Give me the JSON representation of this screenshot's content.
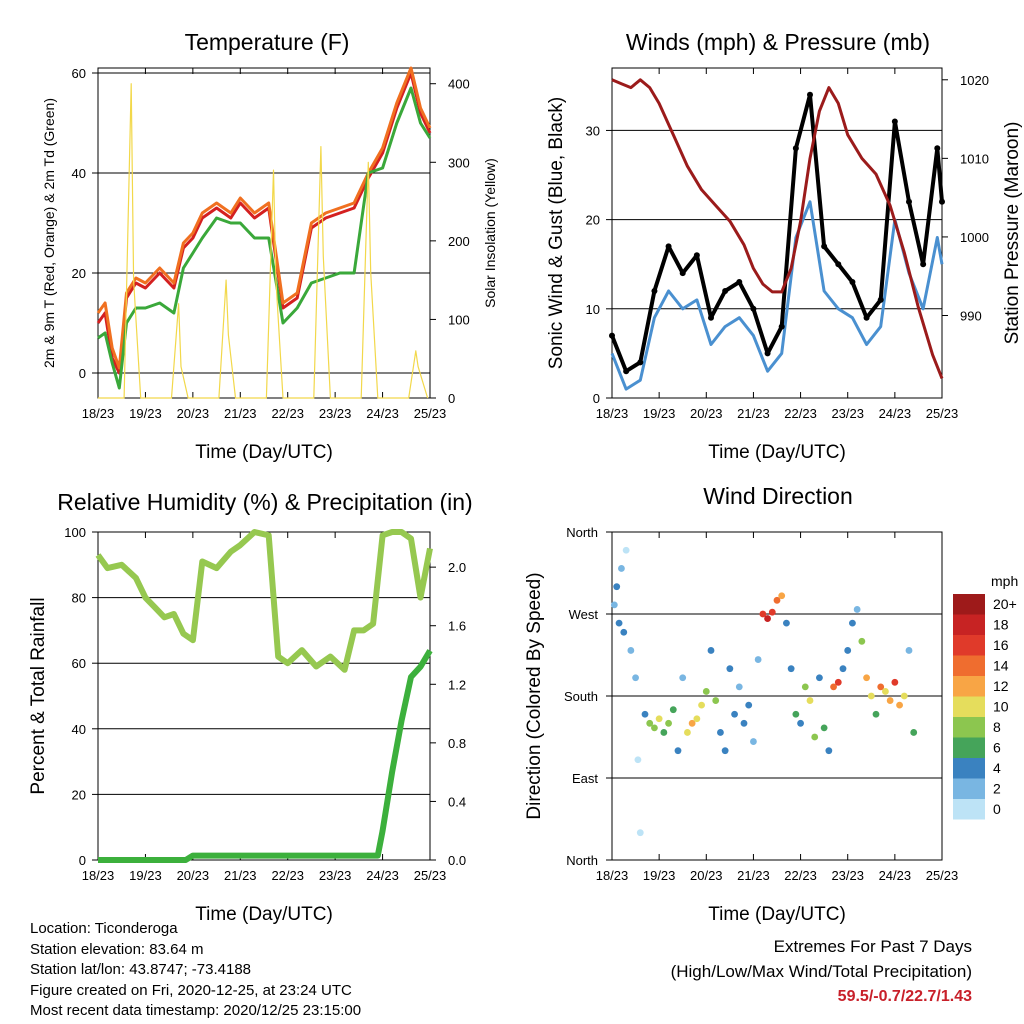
{
  "chart_data": [
    {
      "type": "line",
      "title": "Temperature (F)",
      "xlabel": "Time (Day/UTC)",
      "ylabel": "2m & 9m T (Red, Orange) & 2m Td (Green)",
      "ylabel_right": "Solar Insolation (Yellow)",
      "x_ticks": [
        "18/23",
        "19/23",
        "20/23",
        "21/23",
        "22/23",
        "23/23",
        "24/23",
        "25/23"
      ],
      "ylim": [
        -5,
        61
      ],
      "yticks": [
        0,
        20,
        40,
        60
      ],
      "ylim_right": [
        0,
        420
      ],
      "yticks_right": [
        0,
        100,
        200,
        300,
        400
      ],
      "grid_y": [
        0,
        20,
        40,
        60
      ],
      "series": [
        {
          "name": "2m T",
          "color": "#d42020",
          "x": [
            0,
            0.15,
            0.3,
            0.45,
            0.6,
            0.8,
            1,
            1.3,
            1.6,
            1.8,
            2,
            2.2,
            2.5,
            2.8,
            3,
            3.3,
            3.6,
            3.9,
            4.2,
            4.5,
            4.8,
            5.1,
            5.4,
            5.7,
            6,
            6.3,
            6.6,
            6.8,
            7
          ],
          "values": [
            10,
            12,
            3,
            0,
            15,
            18,
            17,
            20,
            17,
            25,
            27,
            31,
            33,
            31,
            34,
            31,
            33,
            13,
            15,
            29,
            31,
            32,
            33,
            39,
            44,
            53,
            60,
            52,
            48
          ]
        },
        {
          "name": "9m T",
          "color": "#f07020",
          "x": [
            0,
            0.15,
            0.3,
            0.45,
            0.6,
            0.8,
            1,
            1.3,
            1.6,
            1.8,
            2,
            2.2,
            2.5,
            2.8,
            3,
            3.3,
            3.6,
            3.9,
            4.2,
            4.5,
            4.8,
            5.1,
            5.4,
            5.7,
            6,
            6.3,
            6.6,
            6.8,
            7
          ],
          "values": [
            12,
            14,
            5,
            1,
            16,
            19,
            18,
            21,
            18,
            26,
            28,
            32,
            34,
            32,
            35,
            32,
            34,
            14,
            16,
            30,
            32,
            33,
            34,
            40,
            45,
            54,
            61,
            53,
            49
          ]
        },
        {
          "name": "2m Td",
          "color": "#3aa83a",
          "x": [
            0,
            0.15,
            0.3,
            0.45,
            0.6,
            0.8,
            1,
            1.3,
            1.6,
            1.8,
            2,
            2.2,
            2.5,
            2.8,
            3,
            3.3,
            3.6,
            3.9,
            4.2,
            4.5,
            4.8,
            5.1,
            5.4,
            5.7,
            6,
            6.3,
            6.6,
            6.8,
            7
          ],
          "values": [
            7,
            8,
            2,
            -3,
            10,
            13,
            13,
            14,
            12,
            21,
            24,
            27,
            31,
            30,
            30,
            27,
            27,
            10,
            13,
            18,
            19,
            20,
            20,
            40,
            41,
            50,
            57,
            50,
            47
          ]
        },
        {
          "name": "Solar Insolation",
          "color": "#f2d84a",
          "axis": "right",
          "x": [
            0,
            0.55,
            0.7,
            0.75,
            0.9,
            1.55,
            1.7,
            1.75,
            1.9,
            2.55,
            2.7,
            2.75,
            2.9,
            3.55,
            3.7,
            3.75,
            3.9,
            4.55,
            4.7,
            4.75,
            4.9,
            5.55,
            5.7,
            5.75,
            5.9,
            6.55,
            6.7,
            6.75,
            6.95
          ],
          "values": [
            0,
            0,
            400,
            150,
            0,
            0,
            120,
            40,
            0,
            0,
            150,
            80,
            0,
            0,
            290,
            150,
            0,
            0,
            320,
            180,
            0,
            0,
            300,
            160,
            0,
            0,
            60,
            40,
            0
          ]
        }
      ]
    },
    {
      "type": "line",
      "title": "Winds (mph) & Pressure (mb)",
      "xlabel": "Time (Day/UTC)",
      "ylabel": "Sonic Wind & Gust (Blue, Black)",
      "ylabel_right": "Station Pressure (Maroon)",
      "x_ticks": [
        "18/23",
        "19/23",
        "20/23",
        "21/23",
        "22/23",
        "23/23",
        "24/23",
        "25/23"
      ],
      "ylim": [
        0,
        37
      ],
      "yticks": [
        0,
        10,
        20,
        30
      ],
      "ylim_right": [
        979.5,
        1021.5
      ],
      "yticks_right": [
        990,
        1000,
        1010,
        1020
      ],
      "grid_y": [
        0,
        10,
        20,
        30
      ],
      "series": [
        {
          "name": "Sonic Wind",
          "color": "#4a90d0",
          "x": [
            0,
            0.3,
            0.6,
            0.9,
            1.2,
            1.5,
            1.8,
            2.1,
            2.4,
            2.7,
            3,
            3.3,
            3.6,
            3.9,
            4.2,
            4.5,
            4.8,
            5.1,
            5.4,
            5.7,
            6,
            6.3,
            6.6,
            6.9,
            7
          ],
          "values": [
            5,
            1,
            2,
            9,
            12,
            10,
            11,
            6,
            8,
            9,
            7,
            3,
            5,
            18,
            22,
            12,
            10,
            9,
            6,
            8,
            20,
            14,
            10,
            18,
            15
          ]
        },
        {
          "name": "Gust",
          "color": "#000000",
          "x": [
            0,
            0.3,
            0.6,
            0.9,
            1.2,
            1.5,
            1.8,
            2.1,
            2.4,
            2.7,
            3,
            3.3,
            3.6,
            3.9,
            4.2,
            4.5,
            4.8,
            5.1,
            5.4,
            5.7,
            6,
            6.3,
            6.6,
            6.9,
            7
          ],
          "values": [
            7,
            3,
            4,
            12,
            17,
            14,
            16,
            9,
            12,
            13,
            10,
            5,
            8,
            28,
            34,
            17,
            15,
            13,
            9,
            11,
            31,
            22,
            15,
            28,
            22
          ]
        },
        {
          "name": "Station Pressure",
          "color": "#9b1b1b",
          "axis": "right",
          "x": [
            0,
            0.2,
            0.4,
            0.6,
            0.8,
            1,
            1.3,
            1.6,
            1.9,
            2.2,
            2.5,
            2.8,
            3,
            3.2,
            3.4,
            3.6,
            3.8,
            4,
            4.2,
            4.4,
            4.6,
            4.8,
            5,
            5.3,
            5.6,
            5.9,
            6.2,
            6.5,
            6.8,
            7
          ],
          "values": [
            1020,
            1019.5,
            1019,
            1020,
            1019,
            1017,
            1013,
            1009,
            1006,
            1004,
            1002,
            999,
            996,
            994,
            993,
            993,
            996,
            1002,
            1010,
            1016,
            1019,
            1017,
            1013,
            1010,
            1008,
            1004,
            998,
            991,
            985,
            982
          ]
        }
      ]
    },
    {
      "type": "line",
      "title": "Relative Humidity (%) & Precipitation (in)",
      "xlabel": "Time (Day/UTC)",
      "ylabel": "Percent & Total Rainfall",
      "x_ticks": [
        "18/23",
        "19/23",
        "20/23",
        "21/23",
        "22/23",
        "23/23",
        "24/23",
        "25/23"
      ],
      "ylim": [
        0,
        100
      ],
      "yticks": [
        0,
        20,
        40,
        60,
        80,
        100
      ],
      "ylim_right": [
        0,
        2.24
      ],
      "yticks_right": [
        "0.0",
        "0.4",
        "0.8",
        "1.2",
        "1.6",
        "2.0"
      ],
      "grid_y": [
        0,
        20,
        40,
        60,
        80,
        100
      ],
      "series": [
        {
          "name": "Relative Humidity",
          "color": "#96c850",
          "x": [
            0,
            0.2,
            0.5,
            0.8,
            1,
            1.2,
            1.4,
            1.6,
            1.8,
            2,
            2.2,
            2.5,
            2.8,
            3,
            3.3,
            3.6,
            3.8,
            4,
            4.3,
            4.6,
            4.9,
            5.2,
            5.4,
            5.6,
            5.8,
            6,
            6.2,
            6.4,
            6.6,
            6.8,
            7
          ],
          "values": [
            93,
            89,
            90,
            86,
            80,
            77,
            74,
            75,
            69,
            67,
            91,
            89,
            94,
            96,
            100,
            99,
            62,
            60,
            64,
            59,
            62,
            58,
            70,
            70,
            72,
            99,
            100,
            100,
            98,
            80,
            95
          ]
        },
        {
          "name": "Total Precipitation",
          "color": "#3cb03c",
          "axis": "right",
          "x": [
            0,
            0.5,
            1,
            1.5,
            1.85,
            2,
            3,
            4,
            5,
            5.9,
            6,
            6.2,
            6.4,
            6.6,
            6.8,
            7
          ],
          "values": [
            0,
            0,
            0,
            0,
            0,
            0.03,
            0.03,
            0.03,
            0.03,
            0.03,
            0.2,
            0.6,
            0.95,
            1.25,
            1.32,
            1.43
          ]
        }
      ]
    },
    {
      "type": "scatter",
      "title": "Wind Direction",
      "xlabel": "Time (Day/UTC)",
      "ylabel": "Direction (Colored By Speed)",
      "x_ticks": [
        "18/23",
        "19/23",
        "20/23",
        "21/23",
        "22/23",
        "23/23",
        "24/23",
        "25/23"
      ],
      "y_ticks": [
        "North",
        "West",
        "South",
        "East",
        "North"
      ],
      "legend_title": "mph",
      "legend_labels": [
        "20+",
        "18",
        "16",
        "14",
        "12",
        "10",
        "8",
        "6",
        "4",
        "2",
        "0"
      ],
      "legend_colors": [
        "#9e1a1a",
        "#c72323",
        "#e03a2a",
        "#ef6d2f",
        "#f8a545",
        "#e5dd5c",
        "#8cc64f",
        "#45a45a",
        "#3a82c0",
        "#79b6e2",
        "#bde3f6"
      ],
      "points": [
        {
          "x": 0.05,
          "dir": 280,
          "spd": 3
        },
        {
          "x": 0.1,
          "dir": 300,
          "spd": 4
        },
        {
          "x": 0.15,
          "dir": 260,
          "spd": 5
        },
        {
          "x": 0.2,
          "dir": 320,
          "spd": 3
        },
        {
          "x": 0.25,
          "dir": 250,
          "spd": 4
        },
        {
          "x": 0.3,
          "dir": 340,
          "spd": 1
        },
        {
          "x": 0.4,
          "dir": 230,
          "spd": 3
        },
        {
          "x": 0.5,
          "dir": 200,
          "spd": 2
        },
        {
          "x": 0.55,
          "dir": 110,
          "spd": 1
        },
        {
          "x": 0.6,
          "dir": 30,
          "spd": 1
        },
        {
          "x": 0.7,
          "dir": 160,
          "spd": 4
        },
        {
          "x": 0.8,
          "dir": 150,
          "spd": 8
        },
        {
          "x": 0.9,
          "dir": 145,
          "spd": 9
        },
        {
          "x": 1,
          "dir": 155,
          "spd": 10
        },
        {
          "x": 1.1,
          "dir": 140,
          "spd": 7
        },
        {
          "x": 1.2,
          "dir": 150,
          "spd": 8
        },
        {
          "x": 1.3,
          "dir": 165,
          "spd": 6
        },
        {
          "x": 1.4,
          "dir": 120,
          "spd": 4
        },
        {
          "x": 1.5,
          "dir": 200,
          "spd": 2
        },
        {
          "x": 1.6,
          "dir": 140,
          "spd": 10
        },
        {
          "x": 1.7,
          "dir": 150,
          "spd": 12
        },
        {
          "x": 1.8,
          "dir": 155,
          "spd": 11
        },
        {
          "x": 1.9,
          "dir": 170,
          "spd": 10
        },
        {
          "x": 2,
          "dir": 185,
          "spd": 9
        },
        {
          "x": 2.1,
          "dir": 230,
          "spd": 4
        },
        {
          "x": 2.2,
          "dir": 175,
          "spd": 8
        },
        {
          "x": 2.3,
          "dir": 140,
          "spd": 5
        },
        {
          "x": 2.4,
          "dir": 120,
          "spd": 4
        },
        {
          "x": 2.5,
          "dir": 210,
          "spd": 4
        },
        {
          "x": 2.6,
          "dir": 160,
          "spd": 4
        },
        {
          "x": 2.7,
          "dir": 190,
          "spd": 3
        },
        {
          "x": 2.8,
          "dir": 150,
          "spd": 4
        },
        {
          "x": 2.9,
          "dir": 170,
          "spd": 5
        },
        {
          "x": 3,
          "dir": 130,
          "spd": 3
        },
        {
          "x": 3.1,
          "dir": 220,
          "spd": 2
        },
        {
          "x": 3.2,
          "dir": 270,
          "spd": 16
        },
        {
          "x": 3.3,
          "dir": 265,
          "spd": 18
        },
        {
          "x": 3.4,
          "dir": 272,
          "spd": 17
        },
        {
          "x": 3.5,
          "dir": 285,
          "spd": 15
        },
        {
          "x": 3.6,
          "dir": 290,
          "spd": 12
        },
        {
          "x": 3.7,
          "dir": 260,
          "spd": 4
        },
        {
          "x": 3.8,
          "dir": 210,
          "spd": 4
        },
        {
          "x": 3.9,
          "dir": 160,
          "spd": 6
        },
        {
          "x": 4,
          "dir": 150,
          "spd": 4
        },
        {
          "x": 4.1,
          "dir": 190,
          "spd": 8
        },
        {
          "x": 4.2,
          "dir": 175,
          "spd": 10
        },
        {
          "x": 4.3,
          "dir": 135,
          "spd": 8
        },
        {
          "x": 4.4,
          "dir": 200,
          "spd": 4
        },
        {
          "x": 4.5,
          "dir": 145,
          "spd": 7
        },
        {
          "x": 4.6,
          "dir": 120,
          "spd": 5
        },
        {
          "x": 4.7,
          "dir": 190,
          "spd": 15
        },
        {
          "x": 4.8,
          "dir": 195,
          "spd": 17
        },
        {
          "x": 4.9,
          "dir": 210,
          "spd": 4
        },
        {
          "x": 5,
          "dir": 230,
          "spd": 4
        },
        {
          "x": 5.1,
          "dir": 260,
          "spd": 4
        },
        {
          "x": 5.2,
          "dir": 275,
          "spd": 3
        },
        {
          "x": 5.3,
          "dir": 240,
          "spd": 8
        },
        {
          "x": 5.4,
          "dir": 200,
          "spd": 12
        },
        {
          "x": 5.5,
          "dir": 180,
          "spd": 10
        },
        {
          "x": 5.6,
          "dir": 160,
          "spd": 6
        },
        {
          "x": 5.7,
          "dir": 190,
          "spd": 14
        },
        {
          "x": 5.8,
          "dir": 185,
          "spd": 11
        },
        {
          "x": 5.9,
          "dir": 175,
          "spd": 13
        },
        {
          "x": 6,
          "dir": 195,
          "spd": 16
        },
        {
          "x": 6.1,
          "dir": 170,
          "spd": 12
        },
        {
          "x": 6.2,
          "dir": 180,
          "spd": 10
        },
        {
          "x": 6.3,
          "dir": 230,
          "spd": 3
        },
        {
          "x": 6.4,
          "dir": 140,
          "spd": 6
        }
      ]
    }
  ],
  "info": {
    "location": "Location: Ticonderoga",
    "elevation": "Station elevation: 83.64 m",
    "latlon": "Station lat/lon: 43.8747; -73.4188",
    "created": "Figure created on Fri, 2020-12-25, at 23:24 UTC",
    "timestamp": "Most recent data timestamp: 2020/12/25 23:15:00"
  },
  "extremes": {
    "title": "Extremes For Past 7 Days",
    "subtitle": "(High/Low/Max Wind/Total Precipitation)",
    "values": "59.5/-0.7/22.7/1.43"
  }
}
